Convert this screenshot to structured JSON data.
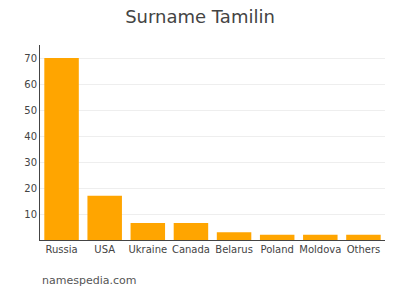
{
  "chart_data": {
    "type": "bar",
    "title": "Surname Tamilin",
    "categories": [
      "Russia",
      "USA",
      "Ukraine",
      "Canada",
      "Belarus",
      "Poland",
      "Moldova",
      "Others"
    ],
    "values": [
      70,
      17,
      6.5,
      6.5,
      3,
      2,
      2,
      2
    ],
    "color": "#FFA500",
    "ylim": [
      0,
      75
    ],
    "yticks": [
      10,
      20,
      30,
      40,
      50,
      60,
      70
    ],
    "grid": true,
    "annotations": [
      "namespedia.com"
    ]
  }
}
